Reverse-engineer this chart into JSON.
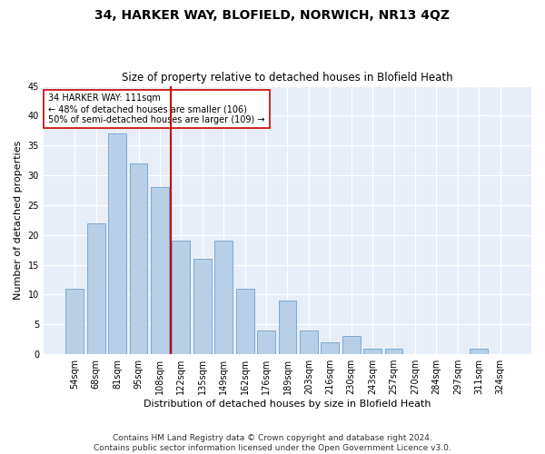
{
  "title": "34, HARKER WAY, BLOFIELD, NORWICH, NR13 4QZ",
  "subtitle": "Size of property relative to detached houses in Blofield Heath",
  "xlabel": "Distribution of detached houses by size in Blofield Heath",
  "ylabel": "Number of detached properties",
  "footer_line1": "Contains HM Land Registry data © Crown copyright and database right 2024.",
  "footer_line2": "Contains public sector information licensed under the Open Government Licence v3.0.",
  "categories": [
    "54sqm",
    "68sqm",
    "81sqm",
    "95sqm",
    "108sqm",
    "122sqm",
    "135sqm",
    "149sqm",
    "162sqm",
    "176sqm",
    "189sqm",
    "203sqm",
    "216sqm",
    "230sqm",
    "243sqm",
    "257sqm",
    "270sqm",
    "284sqm",
    "297sqm",
    "311sqm",
    "324sqm"
  ],
  "values": [
    11,
    22,
    37,
    32,
    28,
    19,
    16,
    19,
    11,
    4,
    9,
    4,
    2,
    3,
    1,
    1,
    0,
    0,
    0,
    1,
    0
  ],
  "bar_color": "#b8cfe8",
  "bar_edge_color": "#7aaad0",
  "vline_x_index": 4.5,
  "vline_color": "#cc0000",
  "annotation_text": "34 HARKER WAY: 111sqm\n← 48% of detached houses are smaller (106)\n50% of semi-detached houses are larger (109) →",
  "annotation_box_color": "#ffffff",
  "annotation_box_edge": "#cc0000",
  "ylim": [
    0,
    45
  ],
  "yticks": [
    0,
    5,
    10,
    15,
    20,
    25,
    30,
    35,
    40,
    45
  ],
  "background_color": "#e8eef8",
  "grid_color": "#ffffff",
  "title_fontsize": 10,
  "subtitle_fontsize": 8.5,
  "axis_label_fontsize": 8,
  "tick_fontsize": 7,
  "footer_fontsize": 6.5
}
